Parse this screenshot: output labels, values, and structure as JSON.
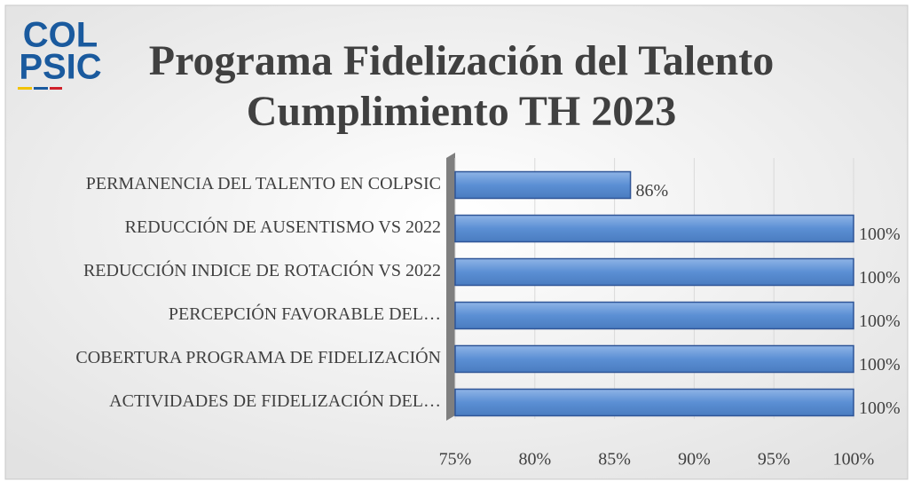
{
  "logo_text": [
    "COL",
    "PSIC"
  ],
  "chart_data": {
    "type": "bar",
    "orientation": "horizontal",
    "title": [
      "Programa Fidelización del Talento",
      "Cumplimiento TH 2023"
    ],
    "categories": [
      "PERMANENCIA DEL TALENTO EN COLPSIC",
      "REDUCCIÓN DE AUSENTISMO VS 2022",
      "REDUCCIÓN INDICE DE ROTACIÓN VS 2022",
      "PERCEPCIÓN FAVORABLE DEL…",
      "COBERTURA PROGRAMA DE FIDELIZACIÓN",
      "ACTIVIDADES DE FIDELIZACIÓN DEL…"
    ],
    "values": [
      86,
      100,
      100,
      100,
      100,
      100
    ],
    "value_labels": [
      "86%",
      "100%",
      "100%",
      "100%",
      "100%",
      "100%"
    ],
    "color": "#5b8fd4",
    "xlim": [
      75,
      100
    ],
    "xticks": [
      {
        "value": 75,
        "label": "75%"
      },
      {
        "value": 80,
        "label": "80%"
      },
      {
        "value": 85,
        "label": "85%"
      },
      {
        "value": 90,
        "label": "90%"
      },
      {
        "value": 95,
        "label": "95%"
      },
      {
        "value": 100,
        "label": "100%"
      }
    ],
    "grid": true
  }
}
